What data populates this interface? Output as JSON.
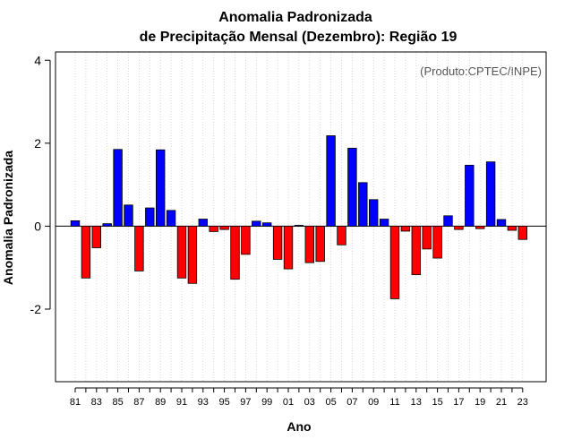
{
  "chart_data": {
    "type": "bar",
    "title": [
      "Anomalia Padronizada",
      "de Precipitação Mensal (Dezembro): Região 19"
    ],
    "xlabel": "Ano",
    "ylabel": "Anomalia Padronizada",
    "source": "(Produto:CPTEC/INPE)",
    "ylim": [
      -3.75,
      4.2
    ],
    "yticks": [
      -2,
      0,
      2,
      4
    ],
    "grid": "vertical dotted",
    "categories": [
      "81",
      "82",
      "83",
      "84",
      "85",
      "86",
      "87",
      "88",
      "89",
      "90",
      "91",
      "92",
      "93",
      "94",
      "95",
      "96",
      "97",
      "98",
      "99",
      "00",
      "01",
      "02",
      "03",
      "04",
      "05",
      "06",
      "07",
      "08",
      "09",
      "10",
      "11",
      "12",
      "13",
      "14",
      "15",
      "16",
      "17",
      "18",
      "19",
      "20",
      "21",
      "22",
      "23"
    ],
    "xtick_labels": [
      "81",
      "83",
      "85",
      "87",
      "89",
      "91",
      "93",
      "95",
      "97",
      "99",
      "01",
      "03",
      "05",
      "07",
      "09",
      "11",
      "13",
      "15",
      "17",
      "19",
      "21",
      "23"
    ],
    "values": [
      0.13,
      -1.25,
      -0.52,
      0.06,
      1.85,
      0.51,
      -1.08,
      0.44,
      1.84,
      0.38,
      -1.25,
      -1.38,
      0.17,
      -0.13,
      -0.08,
      -1.28,
      -0.68,
      0.12,
      0.08,
      -0.8,
      -1.03,
      0.02,
      -0.88,
      -0.85,
      2.18,
      -0.45,
      1.88,
      1.05,
      0.64,
      0.17,
      -1.75,
      -0.12,
      -1.17,
      -0.55,
      -0.77,
      0.25,
      -0.08,
      1.47,
      -0.06,
      1.55,
      0.16,
      -0.1,
      -0.32
    ],
    "positive_color": "#0000ff",
    "negative_color": "#ff0000"
  }
}
